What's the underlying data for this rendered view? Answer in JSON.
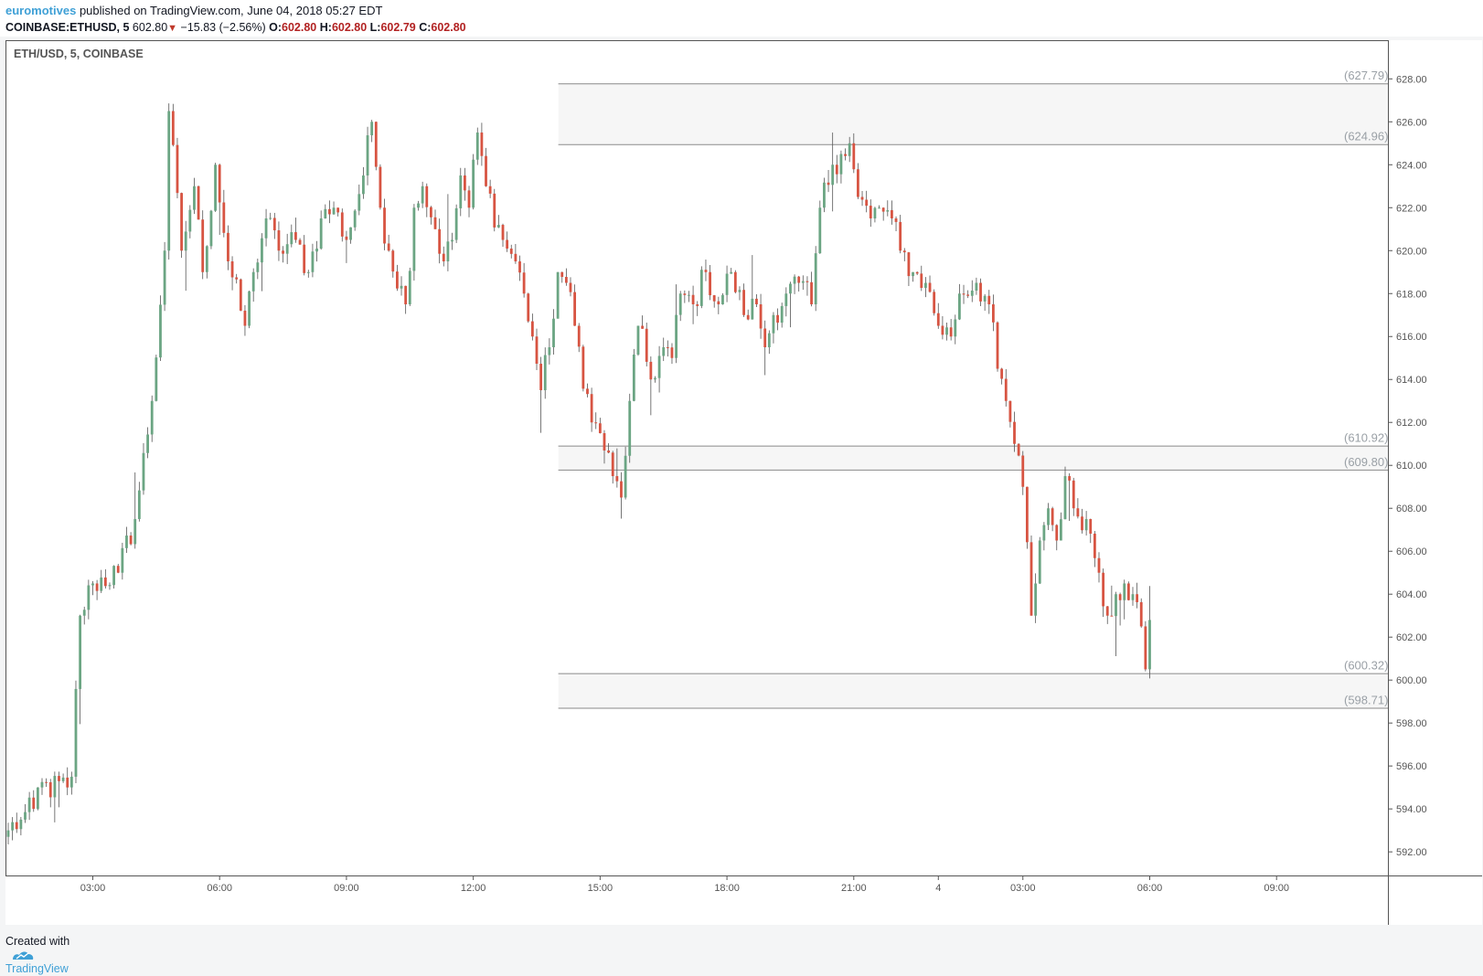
{
  "header": {
    "author": "euromotives",
    "published": "published on TradingView.com, June 04, 2018 05:27 EDT",
    "symbol": "COINBASE:ETHUSD, 5",
    "price": "602.80",
    "change": "−15.83 (−2.56%)",
    "o_label": "O:",
    "o_value": "602.80",
    "h_label": "H:",
    "h_value": "602.80",
    "l_label": "L:",
    "l_value": "602.79",
    "c_label": "C:",
    "c_value": "602.80"
  },
  "footer": {
    "created_with": "Created with",
    "brand": "TradingView"
  },
  "colors": {
    "up": "#6ba583",
    "down": "#d75442",
    "grid_line": "#8a8a8a",
    "zone_fill": "#f6f6f6",
    "label": "#9aa0a6",
    "axis_text": "#555555"
  },
  "chart_data": {
    "type": "candlestick",
    "title": "ETH/USD, 5, COINBASE",
    "ylim": [
      590.9,
      629.8
    ],
    "y_ticks": [
      "628.00",
      "626.00",
      "624.00",
      "622.00",
      "620.00",
      "618.00",
      "616.00",
      "614.00",
      "612.00",
      "610.00",
      "608.00",
      "606.00",
      "604.00",
      "602.00",
      "600.00",
      "598.00",
      "596.00",
      "594.00",
      "592.00"
    ],
    "x_ticks": [
      {
        "label": "03:00",
        "i": 20
      },
      {
        "label": "06:00",
        "i": 50
      },
      {
        "label": "09:00",
        "i": 80
      },
      {
        "label": "12:00",
        "i": 110
      },
      {
        "label": "15:00",
        "i": 140
      },
      {
        "label": "18:00",
        "i": 170
      },
      {
        "label": "21:00",
        "i": 200
      },
      {
        "label": "4",
        "i": 220
      },
      {
        "label": "03:00",
        "i": 240
      },
      {
        "label": "06:00",
        "i": 270
      },
      {
        "label": "09:00",
        "i": 300
      }
    ],
    "x_count": 327,
    "anchors": [
      [
        0,
        593.0
      ],
      [
        3,
        593.5
      ],
      [
        6,
        594.0
      ],
      [
        7,
        595.0
      ],
      [
        14,
        595.0
      ],
      [
        15,
        595.5
      ],
      [
        17,
        603.0
      ],
      [
        20,
        604.5
      ],
      [
        26,
        605.0
      ],
      [
        30,
        607.5
      ],
      [
        34,
        613.0
      ],
      [
        37,
        620.0
      ],
      [
        38,
        626.5
      ],
      [
        41,
        620.0
      ],
      [
        44,
        623.0
      ],
      [
        46,
        619.0
      ],
      [
        49,
        624.0
      ],
      [
        52,
        619.5
      ],
      [
        56,
        616.5
      ],
      [
        58,
        619.0
      ],
      [
        61,
        621.5
      ],
      [
        64,
        620.0
      ],
      [
        68,
        620.5
      ],
      [
        71,
        619.0
      ],
      [
        74,
        621.5
      ],
      [
        77,
        622.0
      ],
      [
        80,
        620.5
      ],
      [
        84,
        623.5
      ],
      [
        86,
        626.0
      ],
      [
        88,
        622.0
      ],
      [
        90,
        620.0
      ],
      [
        94,
        617.5
      ],
      [
        96,
        622.0
      ],
      [
        98,
        623.0
      ],
      [
        101,
        621.0
      ],
      [
        103,
        619.5
      ],
      [
        105,
        620.5
      ],
      [
        107,
        623.5
      ],
      [
        109,
        622.0
      ],
      [
        111,
        625.5
      ],
      [
        113,
        623.0
      ],
      [
        117,
        620.5
      ],
      [
        120,
        619.5
      ],
      [
        122,
        618.0
      ],
      [
        124,
        616.0
      ],
      [
        126,
        613.5
      ],
      [
        128,
        615.5
      ],
      [
        130,
        619.0
      ],
      [
        132,
        618.5
      ],
      [
        134,
        616.5
      ],
      [
        138,
        612.0
      ],
      [
        140,
        611.5
      ],
      [
        143,
        609.5
      ],
      [
        145,
        608.5
      ],
      [
        147,
        613.0
      ],
      [
        149,
        616.5
      ],
      [
        152,
        614.0
      ],
      [
        155,
        615.5
      ],
      [
        157,
        615.0
      ],
      [
        159,
        618.0
      ],
      [
        162,
        617.5
      ],
      [
        165,
        619.0
      ],
      [
        168,
        617.5
      ],
      [
        171,
        619.0
      ],
      [
        174,
        617.0
      ],
      [
        177,
        617.5
      ],
      [
        179,
        615.5
      ],
      [
        181,
        617.0
      ],
      [
        184,
        618.0
      ],
      [
        187,
        618.5
      ],
      [
        190,
        617.5
      ],
      [
        192,
        622.0
      ],
      [
        195,
        624.0
      ],
      [
        197,
        624.5
      ],
      [
        199,
        625.0
      ],
      [
        201,
        622.5
      ],
      [
        204,
        621.5
      ],
      [
        206,
        622.0
      ],
      [
        209,
        621.5
      ],
      [
        211,
        620.0
      ],
      [
        214,
        619.0
      ],
      [
        217,
        618.5
      ],
      [
        220,
        616.5
      ],
      [
        223,
        616.0
      ],
      [
        225,
        618.0
      ],
      [
        229,
        618.5
      ],
      [
        232,
        617.5
      ],
      [
        234,
        614.5
      ],
      [
        236,
        613.0
      ],
      [
        238,
        611.0
      ],
      [
        240,
        609.0
      ],
      [
        242,
        603.0
      ],
      [
        244,
        606.5
      ],
      [
        246,
        608.0
      ],
      [
        248,
        606.5
      ],
      [
        250,
        609.5
      ],
      [
        252,
        608.0
      ],
      [
        255,
        607.5
      ],
      [
        258,
        605.0
      ],
      [
        260,
        603.0
      ],
      [
        262,
        604.0
      ],
      [
        264,
        604.5
      ],
      [
        266,
        604.0
      ],
      [
        268,
        602.5
      ],
      [
        269,
        600.5
      ],
      [
        270,
        602.8
      ]
    ],
    "zones": [
      {
        "top": 627.79,
        "bottom": 624.96,
        "top_label": "(627.79)",
        "bottom_label": "(624.96)",
        "start_i": 130
      },
      {
        "top": 610.92,
        "bottom": 609.8,
        "top_label": "(610.92)",
        "bottom_label": "(609.80)",
        "start_i": 130
      },
      {
        "top": 600.32,
        "bottom": 598.71,
        "top_label": "(600.32)",
        "bottom_label": "(598.71)",
        "start_i": 130
      }
    ]
  }
}
